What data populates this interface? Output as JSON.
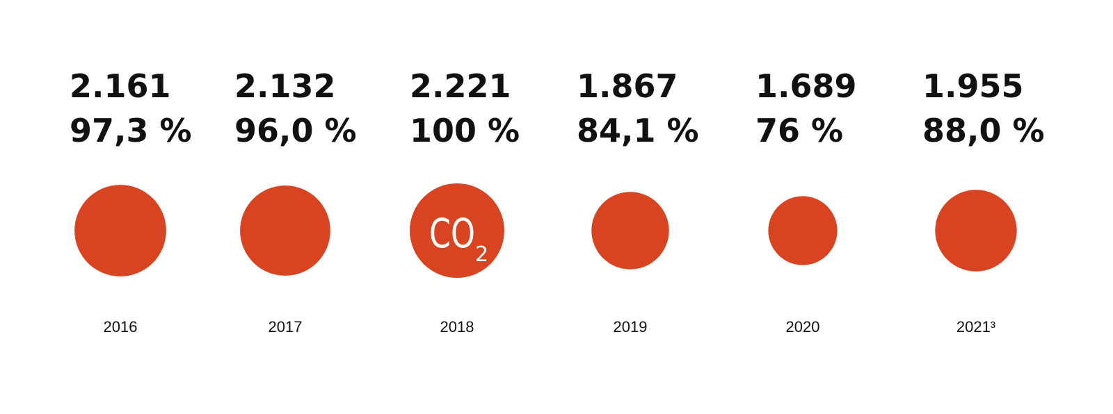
{
  "colors": {
    "bubble": "#d84322",
    "text": "#111111",
    "label_on_bubble": "#ffffff"
  },
  "chart_data": {
    "type": "bubble",
    "categories": [
      "2016",
      "2017",
      "2018",
      "2019",
      "2020",
      "2021³"
    ],
    "values": [
      2.161,
      2.132,
      2.221,
      1.867,
      1.689,
      1.955
    ],
    "value_labels": [
      "2.161",
      "2.132",
      "2.221",
      "1.867",
      "1.689",
      "1.955"
    ],
    "percent_labels": [
      "97,3 %",
      "96,0 %",
      "100 %",
      "84,1 %",
      "76 %",
      "88,0 %"
    ],
    "center_label": {
      "category": "2018",
      "main": "CO",
      "subscript": "2"
    }
  }
}
